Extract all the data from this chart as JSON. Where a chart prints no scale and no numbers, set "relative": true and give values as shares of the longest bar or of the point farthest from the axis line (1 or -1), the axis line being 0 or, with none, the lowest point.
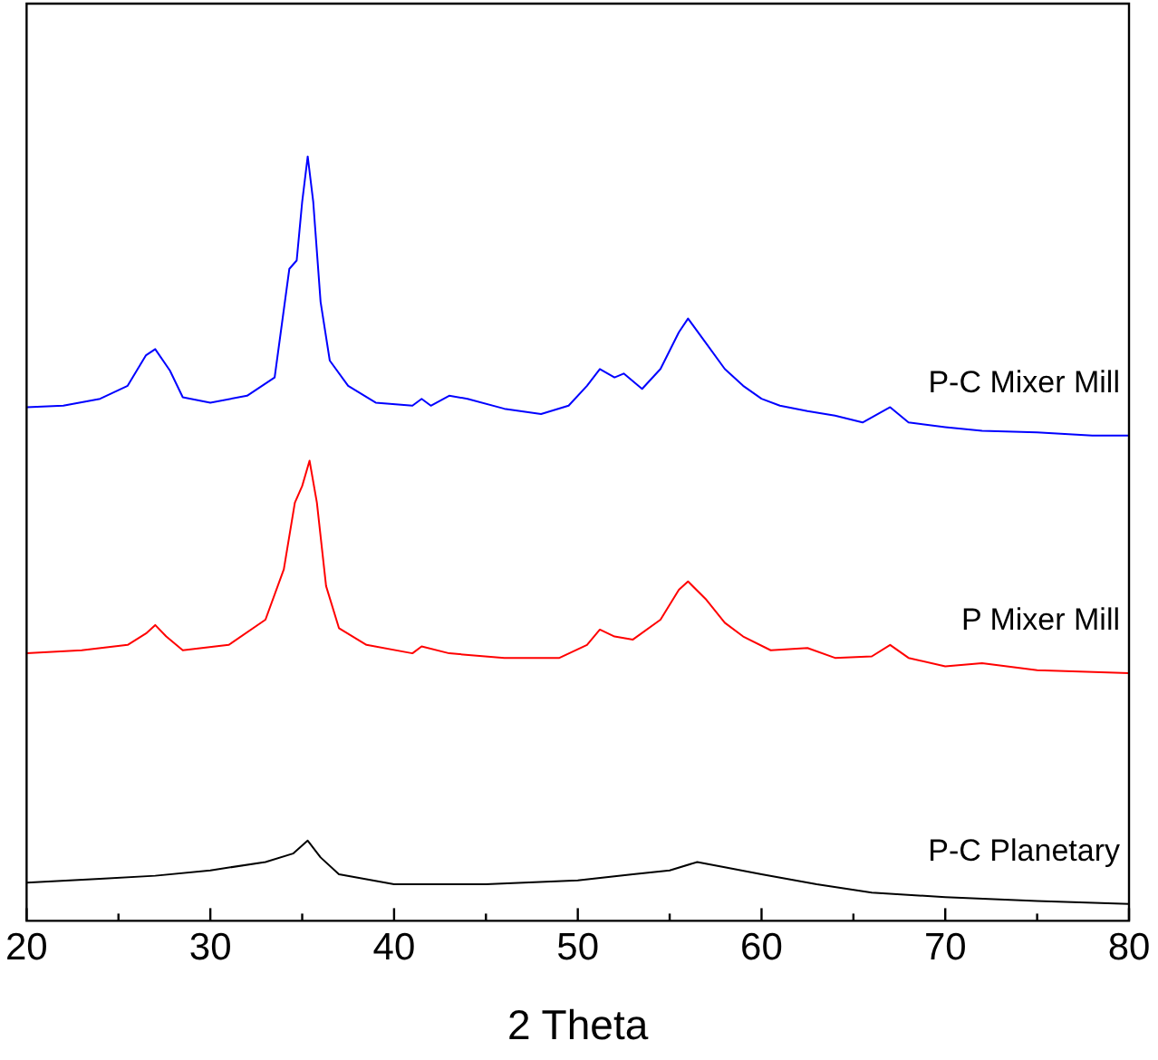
{
  "chart_data": {
    "type": "line",
    "relative": true,
    "xlabel": "2 Theta",
    "xlim": [
      20,
      80
    ],
    "xticks": [
      20,
      {
        "value": 25,
        "label": null
      },
      30,
      {
        "value": 35,
        "label": null
      },
      40,
      {
        "value": 45,
        "label": null
      },
      50,
      {
        "value": 55,
        "label": null
      },
      60,
      {
        "value": 65,
        "label": null
      },
      70,
      {
        "value": 75,
        "label": null
      },
      80
    ],
    "legend": false,
    "grid": false,
    "marker": "none",
    "series": [
      {
        "name": "P-C Mixer Mill",
        "color": "#0000ff",
        "x": [
          20,
          22,
          24,
          25.5,
          26.5,
          27,
          27.8,
          28.5,
          30,
          32,
          33.5,
          34.3,
          34.7,
          35,
          35.3,
          35.6,
          36,
          36.5,
          37.5,
          39,
          41,
          41.5,
          42,
          43,
          44,
          46,
          48,
          49.5,
          50.5,
          51.2,
          52,
          52.5,
          53.5,
          54.5,
          55.5,
          56,
          57,
          58,
          59,
          60,
          61,
          62.5,
          64,
          65.5,
          67,
          68,
          70,
          72,
          75,
          78,
          80
        ],
        "values": [
          0.672,
          0.674,
          0.683,
          0.7,
          0.74,
          0.748,
          0.72,
          0.685,
          0.678,
          0.687,
          0.711,
          0.853,
          0.864,
          0.941,
          1,
          0.941,
          0.81,
          0.733,
          0.7,
          0.678,
          0.674,
          0.683,
          0.674,
          0.687,
          0.683,
          0.67,
          0.663,
          0.674,
          0.7,
          0.722,
          0.711,
          0.716,
          0.696,
          0.722,
          0.77,
          0.788,
          0.755,
          0.722,
          0.7,
          0.683,
          0.674,
          0.667,
          0.661,
          0.652,
          0.672,
          0.652,
          0.646,
          0.641,
          0.639,
          0.635,
          0.635
        ]
      },
      {
        "name": "P Mixer Mill",
        "color": "#ff0000",
        "x": [
          20,
          23,
          25.5,
          26.5,
          27,
          27.6,
          28.5,
          31,
          33,
          34,
          34.6,
          35,
          35.4,
          35.8,
          36.3,
          37,
          38.5,
          41,
          41.5,
          43,
          46,
          49,
          50.5,
          51.2,
          52,
          53,
          54.5,
          55.5,
          56,
          57,
          58,
          59,
          60.5,
          62.5,
          64,
          66,
          67,
          68,
          70,
          72,
          75,
          80
        ],
        "values": [
          0.35,
          0.354,
          0.361,
          0.376,
          0.387,
          0.372,
          0.354,
          0.361,
          0.394,
          0.46,
          0.547,
          0.569,
          0.602,
          0.547,
          0.438,
          0.383,
          0.361,
          0.35,
          0.359,
          0.35,
          0.344,
          0.344,
          0.361,
          0.381,
          0.372,
          0.368,
          0.394,
          0.433,
          0.444,
          0.42,
          0.39,
          0.372,
          0.354,
          0.357,
          0.344,
          0.346,
          0.361,
          0.344,
          0.333,
          0.337,
          0.328,
          0.324
        ]
      },
      {
        "name": "P-C Planetary",
        "color": "#000000",
        "x": [
          20,
          24,
          27,
          30,
          33,
          34.5,
          35.3,
          36,
          37,
          40,
          45,
          50,
          53,
          55,
          56.5,
          58,
          60,
          63,
          66,
          70,
          75,
          80
        ],
        "values": [
          0.05,
          0.055,
          0.059,
          0.066,
          0.077,
          0.088,
          0.105,
          0.083,
          0.061,
          0.048,
          0.048,
          0.053,
          0.061,
          0.066,
          0.077,
          0.07,
          0.061,
          0.048,
          0.037,
          0.031,
          0.026,
          0.022
        ]
      }
    ]
  }
}
